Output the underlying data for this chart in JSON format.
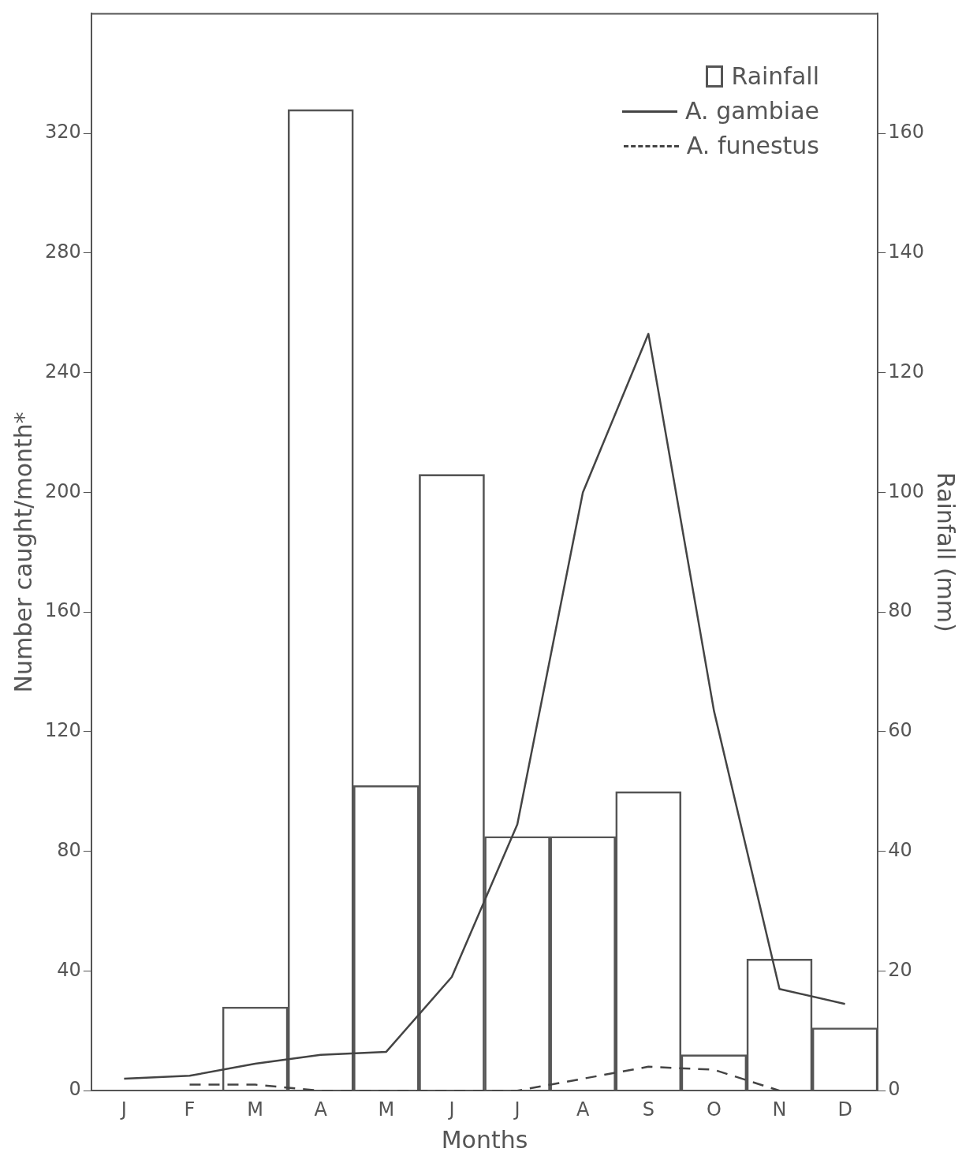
{
  "chart_data": {
    "type": "bar",
    "xlabel": "Months",
    "ylabel": "Number caught/month*",
    "y2label": "Rainfall (mm)",
    "categories": [
      "J",
      "F",
      "M",
      "A",
      "M",
      "J",
      "J",
      "A",
      "S",
      "O",
      "N",
      "D"
    ],
    "series": [
      {
        "name": "Rainfall",
        "axis": "y2",
        "color": "#555555",
        "values": [
          null,
          null,
          14,
          164,
          51,
          103,
          42.5,
          42.5,
          50,
          6,
          22,
          10.5
        ]
      },
      {
        "name": "A. gambiae",
        "type": "line",
        "line_style": "solid",
        "color": "#444444",
        "values": [
          4,
          5,
          9,
          12,
          13,
          38,
          89,
          200,
          253,
          127,
          34,
          29
        ]
      },
      {
        "name": "A. funestus",
        "type": "line",
        "line_style": "dashed",
        "color": "#444444",
        "values": [
          null,
          2,
          2,
          0,
          0,
          0,
          0,
          4,
          8,
          7,
          0,
          null
        ]
      }
    ],
    "ylim": [
      0,
      360
    ],
    "yticks": [
      0,
      40,
      80,
      120,
      160,
      200,
      240,
      280,
      320
    ],
    "y2lim": [
      0,
      180
    ],
    "y2ticks": [
      0,
      20,
      40,
      60,
      80,
      100,
      120,
      140,
      160
    ],
    "grid": false,
    "legend": "top right",
    "marker": "none"
  }
}
